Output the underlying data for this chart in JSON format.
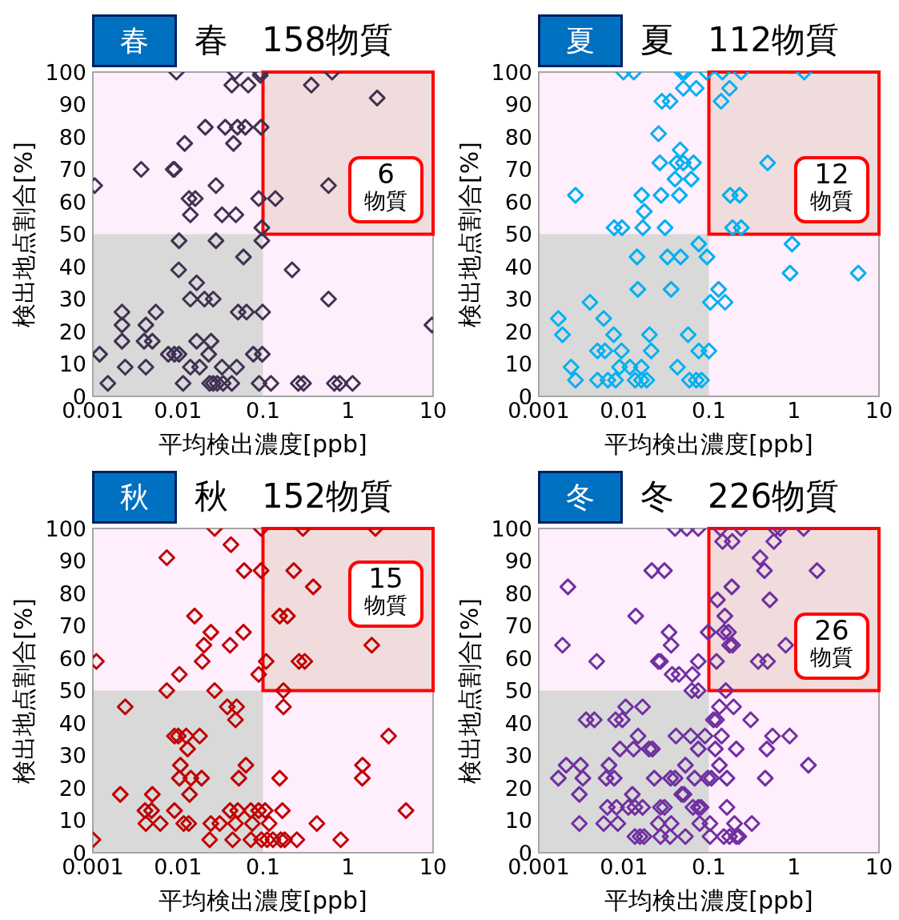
{
  "chart_data": [
    {
      "type": "scatter",
      "title": "春　158物質",
      "xlabel": "平均検出濃度[ppb]",
      "ylabel": "検出地点割合[%]",
      "annotations": [
        "春",
        "6 物質"
      ],
      "bands": [
        {
          "axis": "x",
          "from": 0.001,
          "to": 0.1,
          "color": "#d9d9d9"
        },
        {
          "axis": "y",
          "from": 50,
          "to": 100,
          "color": "#f0dcdc"
        }
      ],
      "log": "x",
      "marker": "diamond",
      "xlim": [
        0.001,
        10
      ],
      "xticks": [
        0.001,
        0.01,
        0.1,
        1,
        10
      ],
      "ylim": [
        0,
        100
      ],
      "yticks": [
        0,
        10,
        20,
        30,
        40,
        50,
        60,
        70,
        80,
        90,
        100
      ],
      "series": [
        {
          "color": "#403152",
          "x": [
            0.0096,
            0.047,
            0.093,
            0.093,
            0.65,
            0.043,
            0.067,
            0.37,
            2.2,
            0.021,
            0.036,
            0.05,
            0.062,
            0.095,
            0.045,
            0.012,
            0.0037,
            0.0088,
            0.0091,
            0.00105,
            0.028,
            0.59,
            0.0135,
            0.016,
            0.089,
            0.14,
            0.014,
            0.033,
            0.048,
            0.097,
            0.097,
            0.0103,
            0.028,
            0.059,
            0.22,
            0.0102,
            0.0166,
            0.014,
            0.0205,
            0.026,
            0.59,
            0.0022,
            0.0055,
            0.051,
            0.064,
            0.099,
            0.0022,
            0.0042,
            9.7,
            0.0022,
            0.004,
            0.005,
            0.0166,
            0.0245,
            0.0012,
            0.0077,
            0.0091,
            0.0103,
            0.023,
            0.077,
            0.098,
            0.0024,
            0.0042,
            0.014,
            0.018,
            0.033,
            0.049,
            0.0015,
            0.0115,
            0.0236,
            0.026,
            0.029,
            0.034,
            0.043,
            0.09,
            0.124,
            0.26,
            0.3,
            0.69,
            0.8,
            1.13
          ],
          "values": [
            100,
            100,
            100,
            99,
            100,
            96,
            96,
            96,
            92,
            83,
            83,
            83,
            83,
            83,
            78,
            78,
            70,
            70,
            70,
            65,
            65,
            65,
            61,
            61,
            61,
            61,
            56,
            56,
            56,
            52,
            48,
            48,
            48,
            43,
            39,
            39,
            35,
            30,
            30,
            30,
            30,
            26,
            26,
            26,
            26,
            26,
            22,
            22,
            22,
            17,
            17,
            17,
            17,
            17,
            13,
            13,
            13,
            13,
            13,
            13,
            13,
            9,
            9,
            9,
            9,
            9,
            9,
            4,
            4,
            4,
            4,
            4,
            4,
            4,
            4,
            4,
            4,
            4,
            4,
            4,
            4
          ]
        }
      ]
    },
    {
      "type": "scatter",
      "title": "夏　112物質",
      "xlabel": "平均検出濃度[ppb]",
      "ylabel": "検出地点割合[%]",
      "annotations": [
        "夏",
        "12 物質"
      ],
      "bands": [
        {
          "axis": "x",
          "from": 0.001,
          "to": 0.1,
          "color": "#d9d9d9"
        },
        {
          "axis": "y",
          "from": 50,
          "to": 100,
          "color": "#f0dcdc"
        }
      ],
      "log": "x",
      "marker": "diamond",
      "xlim": [
        0.001,
        10
      ],
      "xticks": [
        0.001,
        0.01,
        0.1,
        1,
        10
      ],
      "ylim": [
        0,
        100
      ],
      "yticks": [
        0,
        10,
        20,
        30,
        40,
        50,
        60,
        70,
        80,
        90,
        100
      ],
      "series": [
        {
          "color": "#00b0f0",
          "x": [
            0.0099,
            0.0131,
            0.048,
            0.052,
            0.094,
            0.144,
            0.24,
            1.32,
            0.05,
            0.071,
            0.175,
            0.139,
            0.028,
            0.035,
            0.0256,
            0.046,
            0.0265,
            0.042,
            0.05,
            0.066,
            0.49,
            0.04,
            0.062,
            0.0027,
            0.0162,
            0.0274,
            0.045,
            0.178,
            0.23,
            0.0174,
            0.0077,
            0.0095,
            0.0167,
            0.0305,
            0.19,
            0.24,
            0.95,
            0.076,
            0.0143,
            0.0326,
            0.0465,
            0.095,
            0.9,
            5.7,
            0.0146,
            0.036,
            0.13,
            0.104,
            0.155,
            0.004,
            0.0017,
            0.0058,
            0.0019,
            0.0076,
            0.02,
            0.057,
            0.0049,
            0.006,
            0.0094,
            0.021,
            0.076,
            0.1,
            0.0024,
            0.0089,
            0.0118,
            0.0161,
            0.0427,
            0.0027,
            0.0049,
            0.0065,
            0.008,
            0.0136,
            0.0161,
            0.0186,
            0.059,
            0.071,
            0.082
          ],
          "values": [
            100,
            100,
            100,
            100,
            100,
            100,
            100,
            100,
            95,
            95,
            95,
            91,
            91,
            91,
            81,
            76,
            72,
            72,
            72,
            72,
            72,
            67,
            67,
            62,
            62,
            62,
            62,
            62,
            62,
            57,
            52,
            52,
            52,
            52,
            52,
            52,
            47,
            47,
            43,
            43,
            43,
            43,
            38,
            38,
            33,
            33,
            33,
            29,
            29,
            29,
            24,
            24,
            19,
            19,
            19,
            19,
            14,
            14,
            14,
            14,
            14,
            14,
            9,
            9,
            9,
            9,
            9,
            5,
            5,
            5,
            5,
            5,
            5,
            5,
            5,
            5,
            5
          ]
        }
      ]
    },
    {
      "type": "scatter",
      "title": "秋　152物質",
      "xlabel": "平均検出濃度[ppb]",
      "ylabel": "検出地点割合[%]",
      "annotations": [
        "秋",
        "15 物質"
      ],
      "bands": [
        {
          "axis": "x",
          "from": 0.001,
          "to": 0.1,
          "color": "#d9d9d9"
        },
        {
          "axis": "y",
          "from": 50,
          "to": 100,
          "color": "#f0dcdc"
        }
      ],
      "log": "x",
      "marker": "diamond",
      "xlim": [
        0.001,
        10
      ],
      "xticks": [
        0.001,
        0.01,
        0.1,
        1,
        10
      ],
      "ylim": [
        0,
        100
      ],
      "yticks": [
        0,
        10,
        20,
        30,
        40,
        50,
        60,
        70,
        80,
        90,
        100
      ],
      "series": [
        {
          "color": "#c00000",
          "x": [
            0.027,
            0.095,
            0.295,
            2.1,
            0.042,
            0.0074,
            0.06,
            0.095,
            0.23,
            0.39,
            0.0157,
            0.157,
            0.194,
            0.0244,
            0.059,
            0.0202,
            0.041,
            1.9,
            0.0011,
            0.0193,
            0.109,
            0.265,
            0.31,
            0.0104,
            0.089,
            0.0074,
            0.027,
            0.174,
            0.0024,
            0.038,
            0.049,
            0.174,
            0.0475,
            0.0091,
            0.0101,
            0.0125,
            0.018,
            3.0,
            0.013,
            0.0107,
            0.063,
            1.48,
            0.0104,
            0.0142,
            0.019,
            0.052,
            0.157,
            1.47,
            0.0021,
            0.005,
            0.0137,
            0.0041,
            0.0049,
            0.0091,
            0.041,
            0.0505,
            0.072,
            0.089,
            0.106,
            0.169,
            4.8,
            0.0042,
            0.0062,
            0.0117,
            0.0134,
            0.0244,
            0.031,
            0.0475,
            0.075,
            0.118,
            0.43,
            0.001,
            0.0236,
            0.044,
            0.072,
            0.096,
            0.112,
            0.131,
            0.162,
            0.18,
            0.25,
            0.82
          ],
          "values": [
            100,
            100,
            100,
            100,
            95,
            91,
            87,
            87,
            87,
            82,
            73,
            73,
            73,
            68,
            68,
            64,
            64,
            64,
            59,
            59,
            59,
            59,
            59,
            55,
            55,
            50,
            50,
            50,
            45,
            45,
            45,
            45,
            41,
            36,
            36,
            36,
            36,
            36,
            32,
            27,
            27,
            27,
            23,
            23,
            23,
            23,
            23,
            23,
            18,
            18,
            18,
            13,
            13,
            13,
            13,
            13,
            13,
            13,
            13,
            13,
            13,
            9,
            9,
            9,
            9,
            9,
            9,
            9,
            9,
            9,
            9,
            4,
            4,
            4,
            4,
            4,
            4,
            4,
            4,
            4,
            4,
            4
          ]
        }
      ]
    },
    {
      "type": "scatter",
      "title": "冬　226物質",
      "xlabel": "平均検出濃度[ppb]",
      "ylabel": "検出地点割合[%]",
      "annotations": [
        "冬",
        "26 物質"
      ],
      "bands": [
        {
          "axis": "x",
          "from": 0.001,
          "to": 0.1,
          "color": "#d9d9d9"
        },
        {
          "axis": "y",
          "from": 50,
          "to": 100,
          "color": "#f0dcdc"
        }
      ],
      "log": "x",
      "marker": "diamond",
      "xlim": [
        0.001,
        10
      ],
      "xticks": [
        0.001,
        0.01,
        0.1,
        1,
        10
      ],
      "ylim": [
        0,
        100
      ],
      "yticks": [
        0,
        10,
        20,
        30,
        40,
        50,
        60,
        70,
        80,
        90,
        100
      ],
      "series": [
        {
          "color": "#7030a0",
          "x": [
            0.04,
            0.055,
            0.075,
            0.137,
            0.24,
            0.6,
            0.69,
            1.3,
            0.145,
            0.188,
            0.58,
            0.4,
            0.45,
            1.87,
            0.0213,
            0.03,
            0.0022,
            0.186,
            0.126,
            0.52,
            0.0138,
            0.154,
            0.034,
            0.098,
            0.15,
            0.17,
            0.036,
            0.0019,
            0.175,
            0.19,
            0.8,
            0.0048,
            0.0254,
            0.027,
            0.075,
            0.123,
            0.38,
            0.49,
            0.037,
            0.0445,
            0.064,
            0.063,
            0.075,
            0.158,
            0.133,
            0.195,
            0.0105,
            0.0166,
            0.0036,
            0.0045,
            0.008,
            0.0096,
            0.113,
            0.123,
            0.31,
            0.0147,
            0.041,
            0.061,
            0.09,
            0.141,
            0.56,
            0.89,
            0.009,
            0.013,
            0.0198,
            0.0217,
            0.075,
            0.119,
            0.21,
            0.48,
            0.0021,
            0.0031,
            0.0067,
            0.053,
            0.133,
            1.48,
            0.0017,
            0.0033,
            0.0062,
            0.0077,
            0.0228,
            0.0355,
            0.04,
            0.068,
            0.097,
            0.107,
            0.163,
            0.46,
            0.003,
            0.0126,
            0.048,
            0.051,
            0.0064,
            0.0082,
            0.0113,
            0.0135,
            0.0166,
            0.027,
            0.03,
            0.065,
            0.075,
            0.081,
            0.163,
            0.003,
            0.0058,
            0.0085,
            0.0254,
            0.036,
            0.078,
            0.103,
            0.2,
            0.32,
            0.0135,
            0.0155,
            0.0173,
            0.027,
            0.035,
            0.053,
            0.103,
            0.15,
            0.175,
            0.21,
            0.225
          ],
          "values": [
            100,
            100,
            100,
            100,
            100,
            100,
            100,
            100,
            96,
            96,
            96,
            91,
            87,
            87,
            87,
            87,
            82,
            82,
            78,
            78,
            73,
            73,
            68,
            68,
            68,
            68,
            64,
            64,
            64,
            64,
            64,
            59,
            59,
            59,
            59,
            59,
            59,
            59,
            55,
            55,
            55,
            50,
            50,
            50,
            45,
            45,
            45,
            45,
            41,
            41,
            41,
            41,
            41,
            41,
            41,
            36,
            36,
            36,
            36,
            36,
            36,
            36,
            32,
            32,
            32,
            32,
            32,
            32,
            32,
            32,
            27,
            27,
            27,
            27,
            27,
            27,
            23,
            23,
            23,
            23,
            23,
            23,
            23,
            23,
            23,
            23,
            23,
            23,
            18,
            18,
            18,
            18,
            14,
            14,
            14,
            14,
            14,
            14,
            14,
            14,
            14,
            14,
            14,
            9,
            9,
            9,
            9,
            9,
            9,
            9,
            9,
            9,
            5,
            5,
            5,
            5,
            5,
            5,
            5,
            5,
            5,
            5,
            5
          ]
        }
      ]
    }
  ]
}
